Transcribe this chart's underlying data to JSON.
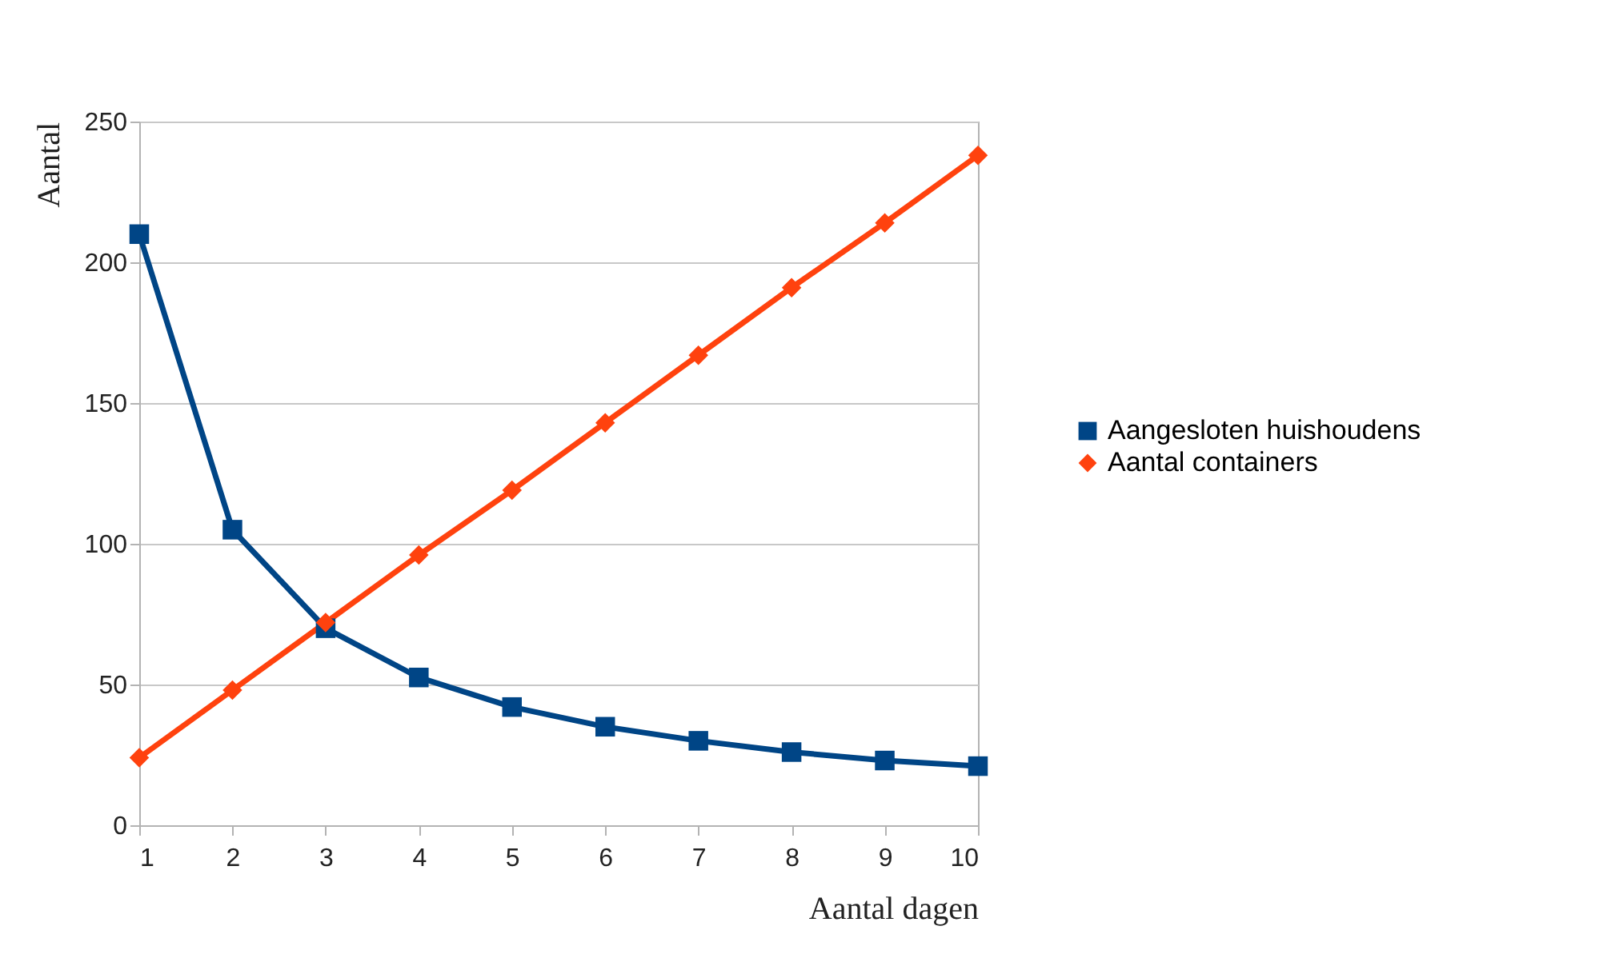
{
  "chart_data": {
    "type": "line",
    "xlabel": "Aantal dagen",
    "ylabel": "Aantal",
    "x": [
      1,
      2,
      3,
      4,
      5,
      6,
      7,
      8,
      9,
      10
    ],
    "series": [
      {
        "name": "Aangesloten huishoudens",
        "color": "#004586",
        "marker": "square",
        "values": [
          210,
          105,
          70,
          52.5,
          42,
          35,
          30,
          26,
          23,
          21
        ]
      },
      {
        "name": "Aantal containers",
        "color": "#ff420e",
        "marker": "diamond",
        "values": [
          24,
          48,
          72,
          96,
          119,
          143,
          167,
          191,
          214,
          238
        ]
      }
    ],
    "xlim": [
      1,
      10
    ],
    "xticks": [
      1,
      2,
      3,
      4,
      5,
      6,
      7,
      8,
      9,
      10
    ],
    "ylim": [
      0,
      250
    ],
    "yticks": [
      0,
      50,
      100,
      150,
      200,
      250
    ],
    "grid": "y",
    "legend": "right",
    "line_style": "solid"
  }
}
